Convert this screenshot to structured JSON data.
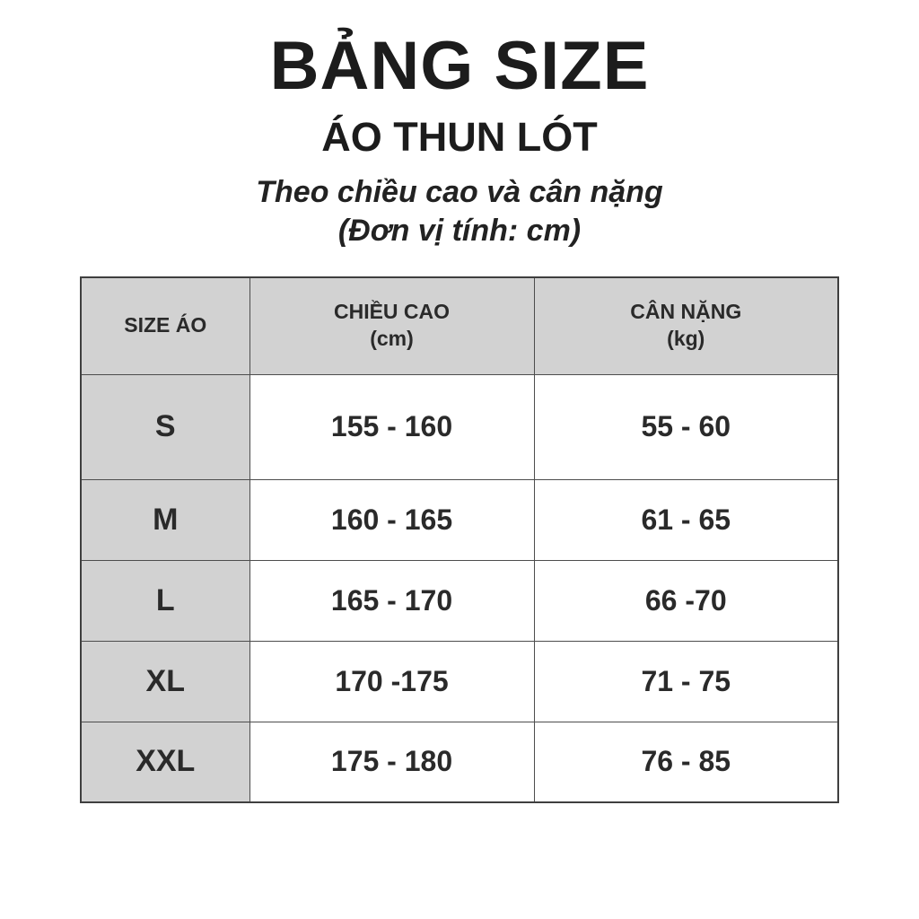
{
  "header": {
    "title": "BẢNG SIZE",
    "subtitle": "ÁO THUN LÓT",
    "tagline_line1": "Theo chiều cao và cân nặng",
    "tagline_line2": "(Đơn vị tính: cm)"
  },
  "table": {
    "headers": [
      {
        "line1": "SIZE ÁO",
        "line2": ""
      },
      {
        "line1": "CHIỀU CAO",
        "line2": "(cm)"
      },
      {
        "line1": "CÂN NẶNG",
        "line2": "(kg)"
      }
    ],
    "rows": [
      {
        "size": "S",
        "height": "155 - 160",
        "weight": "55 - 60"
      },
      {
        "size": "M",
        "height": "160 - 165",
        "weight": "61 - 65"
      },
      {
        "size": "L",
        "height": "165 - 170",
        "weight": "66 -70"
      },
      {
        "size": "XL",
        "height": "170 -175",
        "weight": "71 - 75"
      },
      {
        "size": "XXL",
        "height": "175 - 180",
        "weight": "76 - 85"
      }
    ]
  },
  "colors": {
    "cell_gray": "#d2d2d2",
    "border": "#4d4d4d",
    "text": "#1e1e1e",
    "background": "#ffffff"
  }
}
